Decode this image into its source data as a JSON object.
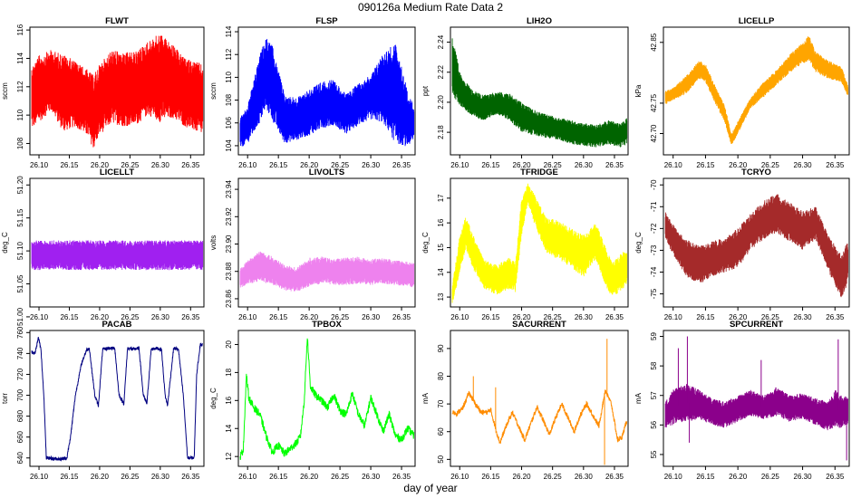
{
  "figure": {
    "title": "090126a   Medium Rate Data 2",
    "xlabel": "day of year"
  },
  "chart_data": [
    {
      "type": "line",
      "title": "FLWT",
      "ylabel": "sccm",
      "color": "#ff0000",
      "xlim": [
        26.085,
        26.372
      ],
      "ylim": [
        107.2,
        116.2
      ],
      "xticks": [
        "26.10",
        "26.15",
        "26.20",
        "26.25",
        "26.30",
        "26.35"
      ],
      "yticks": [
        "108",
        "110",
        "112",
        "114",
        "116"
      ],
      "x": [
        26.088,
        26.1,
        26.12,
        26.14,
        26.16,
        26.18,
        26.19,
        26.2,
        26.22,
        26.24,
        26.26,
        26.28,
        26.3,
        26.32,
        26.34,
        26.36,
        26.37
      ],
      "lo": [
        109.0,
        109.5,
        110.3,
        108.8,
        109.2,
        108.5,
        107.6,
        108.6,
        109.4,
        109.2,
        109.3,
        110.0,
        109.5,
        109.8,
        109.2,
        108.8,
        108.6
      ],
      "hi": [
        113.5,
        114.2,
        114.6,
        114.3,
        113.8,
        113.2,
        112.8,
        113.6,
        114.6,
        114.4,
        114.5,
        115.2,
        115.8,
        115.0,
        114.0,
        113.8,
        113.5
      ]
    },
    {
      "type": "line",
      "title": "FLSP",
      "ylabel": "sccm",
      "color": "#0000ff",
      "xlim": [
        26.085,
        26.372
      ],
      "ylim": [
        103.2,
        114.4
      ],
      "xticks": [
        "26.10",
        "26.15",
        "26.20",
        "26.25",
        "26.30",
        "26.35"
      ],
      "yticks": [
        "104",
        "106",
        "108",
        "110",
        "112",
        "114"
      ],
      "x": [
        26.088,
        26.1,
        26.12,
        26.13,
        26.14,
        26.16,
        26.18,
        26.2,
        26.22,
        26.24,
        26.26,
        26.28,
        26.3,
        26.32,
        26.34,
        26.36,
        26.37
      ],
      "lo": [
        103.8,
        104.2,
        106.0,
        107.2,
        106.2,
        104.2,
        104.5,
        104.9,
        105.5,
        105.8,
        105.0,
        105.8,
        106.3,
        106.0,
        104.2,
        103.9,
        104.5
      ],
      "hi": [
        106.5,
        107.5,
        112.0,
        113.5,
        112.8,
        108.5,
        108.2,
        109.0,
        109.6,
        109.8,
        108.5,
        109.5,
        110.2,
        112.2,
        113.0,
        108.8,
        107.5
      ]
    },
    {
      "type": "line",
      "title": "LIH2O",
      "ylabel": "ppt",
      "color": "#006400",
      "xlim": [
        26.085,
        26.372
      ],
      "ylim": [
        2.165,
        2.25
      ],
      "xticks": [
        "26.10",
        "26.15",
        "26.20",
        "26.25",
        "26.30",
        "26.35"
      ],
      "yticks": [
        "2.18",
        "2.20",
        "2.22",
        "2.24"
      ],
      "x": [
        26.088,
        26.1,
        26.12,
        26.14,
        26.16,
        26.18,
        26.2,
        26.22,
        26.24,
        26.26,
        26.28,
        26.3,
        26.32,
        26.34,
        26.36,
        26.37
      ],
      "lo": [
        2.205,
        2.198,
        2.19,
        2.188,
        2.192,
        2.188,
        2.18,
        2.178,
        2.176,
        2.175,
        2.172,
        2.171,
        2.17,
        2.172,
        2.17,
        2.172
      ],
      "hi": [
        2.245,
        2.22,
        2.208,
        2.205,
        2.207,
        2.206,
        2.2,
        2.195,
        2.192,
        2.19,
        2.188,
        2.186,
        2.185,
        2.188,
        2.186,
        2.19
      ]
    },
    {
      "type": "line",
      "title": "LICELLP",
      "ylabel": "kPa",
      "color": "#ffa500",
      "xlim": [
        26.085,
        26.372
      ],
      "ylim": [
        42.665,
        42.875
      ],
      "xticks": [
        "26.10",
        "26.15",
        "26.20",
        "26.25",
        "26.30",
        "26.35"
      ],
      "yticks": [
        "42.70",
        "42.75",
        "42.85"
      ],
      "x": [
        26.088,
        26.1,
        26.12,
        26.14,
        26.15,
        26.16,
        26.18,
        26.19,
        26.2,
        26.22,
        26.24,
        26.26,
        26.28,
        26.3,
        26.31,
        26.32,
        26.34,
        26.36,
        26.37
      ],
      "lo": [
        42.748,
        42.755,
        42.765,
        42.79,
        42.785,
        42.76,
        42.718,
        42.68,
        42.7,
        42.742,
        42.76,
        42.78,
        42.8,
        42.815,
        42.82,
        42.8,
        42.79,
        42.785,
        42.76
      ],
      "hi": [
        42.77,
        42.775,
        42.795,
        42.82,
        42.815,
        42.79,
        42.745,
        42.7,
        42.72,
        42.76,
        42.785,
        42.805,
        42.83,
        42.85,
        42.862,
        42.835,
        42.82,
        42.81,
        42.78
      ]
    },
    {
      "type": "line",
      "title": "LICELLT",
      "ylabel": "deg_C",
      "color": "#a020f0",
      "xlim": [
        26.085,
        26.372
      ],
      "ylim": [
        51.015,
        51.21
      ],
      "xticks": [
        "26.10",
        "26.15",
        "26.20",
        "26.25",
        "26.30",
        "26.35"
      ],
      "yticks": [
        "51.00",
        "51.05",
        "51.10",
        "51.15",
        "51.20"
      ],
      "x": [
        26.088,
        26.37
      ],
      "lo": [
        51.071,
        51.071
      ],
      "hi": [
        51.116,
        51.116
      ]
    },
    {
      "type": "line",
      "title": "LIVOLTS",
      "ylabel": "volts",
      "color": "#ee82ee",
      "xlim": [
        26.085,
        26.372
      ],
      "ylim": [
        23.854,
        23.948
      ],
      "xticks": [
        "26.10",
        "26.15",
        "26.20",
        "26.25",
        "26.30",
        "26.35"
      ],
      "yticks": [
        "23.86",
        "23.88",
        "23.90",
        "23.92",
        "23.94"
      ],
      "x": [
        26.088,
        26.1,
        26.12,
        26.14,
        26.16,
        26.18,
        26.2,
        26.22,
        26.24,
        26.26,
        26.28,
        26.3,
        26.32,
        26.34,
        26.36,
        26.37
      ],
      "lo": [
        23.868,
        23.87,
        23.873,
        23.87,
        23.866,
        23.865,
        23.869,
        23.871,
        23.87,
        23.87,
        23.871,
        23.87,
        23.871,
        23.87,
        23.869,
        23.868
      ],
      "hi": [
        23.882,
        23.888,
        23.895,
        23.891,
        23.885,
        23.883,
        23.89,
        23.891,
        23.889,
        23.89,
        23.891,
        23.889,
        23.89,
        23.888,
        23.887,
        23.886
      ]
    },
    {
      "type": "line",
      "title": "TFRIDGE",
      "ylabel": "deg_C",
      "color": "#ffff00",
      "xlim": [
        26.085,
        26.372
      ],
      "ylim": [
        12.6,
        17.8
      ],
      "xticks": [
        "26.10",
        "26.15",
        "26.20",
        "26.25",
        "26.30",
        "26.35"
      ],
      "yticks": [
        "13",
        "14",
        "15",
        "16",
        "17"
      ],
      "x": [
        26.088,
        26.1,
        26.11,
        26.12,
        26.14,
        26.16,
        26.18,
        26.19,
        26.2,
        26.21,
        26.22,
        26.24,
        26.26,
        26.28,
        26.3,
        26.32,
        26.34,
        26.35,
        26.37
      ],
      "lo": [
        12.7,
        14.0,
        15.0,
        14.2,
        13.3,
        13.1,
        13.3,
        13.2,
        15.5,
        16.8,
        16.0,
        14.8,
        14.5,
        14.2,
        13.8,
        14.5,
        13.2,
        13.0,
        13.5
      ],
      "hi": [
        13.5,
        15.5,
        16.3,
        15.6,
        14.5,
        14.3,
        14.6,
        14.4,
        17.0,
        17.6,
        17.2,
        16.2,
        16.1,
        15.8,
        15.5,
        16.0,
        14.8,
        14.5,
        15.0
      ]
    },
    {
      "type": "line",
      "title": "TCRYO",
      "ylabel": "deg_C",
      "color": "#a52a2a",
      "xlim": [
        26.085,
        26.372
      ],
      "ylim": [
        -75.6,
        -69.7
      ],
      "xticks": [
        "26.10",
        "26.15",
        "26.20",
        "26.25",
        "26.30",
        "26.35"
      ],
      "yticks": [
        "-75",
        "-74",
        "-73",
        "-72",
        "-71",
        "-70"
      ],
      "x": [
        26.088,
        26.1,
        26.12,
        26.14,
        26.16,
        26.18,
        26.2,
        26.22,
        26.24,
        26.26,
        26.28,
        26.3,
        26.32,
        26.34,
        26.36,
        26.37
      ],
      "lo": [
        -72.5,
        -73.2,
        -74.2,
        -74.6,
        -74.2,
        -74.0,
        -73.8,
        -73.0,
        -72.5,
        -72.2,
        -72.6,
        -73.0,
        -72.5,
        -74.0,
        -75.2,
        -74.5
      ],
      "hi": [
        -71.2,
        -71.8,
        -72.5,
        -72.8,
        -72.6,
        -72.4,
        -72.0,
        -71.3,
        -70.7,
        -70.4,
        -70.8,
        -71.2,
        -71.0,
        -72.3,
        -73.2,
        -72.5
      ]
    },
    {
      "type": "line",
      "title": "PACAB",
      "ylabel": "torr",
      "color": "#000080",
      "xlim": [
        26.085,
        26.372
      ],
      "ylim": [
        632,
        762
      ],
      "xticks": [
        "26.10",
        "26.15",
        "26.20",
        "26.25",
        "26.30",
        "26.35"
      ],
      "yticks": [
        "640",
        "660",
        "680",
        "700",
        "720",
        "740",
        "760"
      ],
      "x": [
        26.088,
        26.093,
        26.095,
        26.099,
        26.103,
        26.108,
        26.112,
        26.135,
        26.146,
        26.152,
        26.16,
        26.17,
        26.178,
        26.183,
        26.192,
        26.198,
        26.205,
        26.215,
        26.225,
        26.232,
        26.24,
        26.246,
        26.255,
        26.265,
        26.272,
        26.278,
        26.285,
        26.293,
        26.302,
        26.308,
        26.312,
        26.322,
        26.33,
        26.338,
        26.345,
        26.356,
        26.36,
        26.366,
        26.37
      ],
      "y": [
        742,
        740,
        744,
        755,
        745,
        700,
        640,
        639,
        640,
        660,
        700,
        730,
        743,
        745,
        700,
        690,
        744,
        745,
        745,
        700,
        692,
        745,
        744,
        745,
        700,
        692,
        744,
        745,
        744,
        700,
        690,
        745,
        744,
        700,
        640,
        640,
        720,
        749,
        748
      ]
    },
    {
      "type": "line",
      "title": "TPBOX",
      "ylabel": "deg_C",
      "color": "#00ff00",
      "xlim": [
        26.085,
        26.372
      ],
      "ylim": [
        11.3,
        21.0
      ],
      "xticks": [
        "26.10",
        "26.15",
        "26.20",
        "26.25",
        "26.30",
        "26.35"
      ],
      "yticks": [
        "12",
        "14",
        "16",
        "18",
        "20"
      ],
      "x": [
        26.088,
        26.093,
        26.098,
        26.102,
        26.11,
        26.12,
        26.13,
        26.14,
        26.15,
        26.16,
        26.17,
        26.18,
        26.186,
        26.192,
        26.197,
        26.202,
        26.21,
        26.22,
        26.23,
        26.24,
        26.25,
        26.26,
        26.27,
        26.28,
        26.29,
        26.3,
        26.31,
        26.32,
        26.33,
        26.34,
        26.35,
        26.36,
        26.37
      ],
      "y": [
        12.0,
        12.5,
        17.8,
        16.2,
        15.5,
        15.0,
        13.5,
        12.3,
        12.8,
        12.2,
        12.6,
        13.0,
        13.5,
        16.0,
        20.6,
        17.0,
        16.4,
        16.0,
        15.5,
        16.4,
        15.3,
        15.0,
        16.5,
        15.0,
        14.2,
        16.2,
        15.0,
        13.8,
        15.0,
        13.5,
        13.2,
        14.0,
        13.5
      ]
    },
    {
      "type": "line",
      "title": "SACURRENT",
      "ylabel": "mA",
      "color": "#ff8c00",
      "xlim": [
        26.085,
        26.372
      ],
      "ylim": [
        47.5,
        96.5
      ],
      "xticks": [
        "26.10",
        "26.15",
        "26.20",
        "26.25",
        "26.30",
        "26.35"
      ],
      "yticks": [
        "50",
        "60",
        "70",
        "80",
        "90"
      ],
      "x": [
        26.088,
        26.095,
        26.105,
        26.115,
        26.125,
        26.135,
        26.145,
        26.15,
        26.158,
        26.165,
        26.175,
        26.185,
        26.195,
        26.205,
        26.215,
        26.225,
        26.235,
        26.245,
        26.255,
        26.265,
        26.275,
        26.285,
        26.295,
        26.305,
        26.315,
        26.325,
        26.335,
        26.345,
        26.355,
        26.362,
        26.37
      ],
      "y": [
        67.0,
        66.5,
        68.5,
        74.0,
        70.0,
        67.0,
        67.0,
        68.0,
        61.0,
        56.0,
        62.0,
        67.0,
        62.0,
        57.0,
        63.0,
        69.0,
        64.0,
        59.0,
        65.0,
        70.0,
        65.0,
        60.0,
        66.0,
        70.0,
        66.0,
        62.0,
        75.0,
        70.0,
        57.0,
        58.0,
        64.0
      ],
      "spikes": [
        {
          "x": 26.122,
          "y": 80.0
        },
        {
          "x": 26.158,
          "y": 76.0
        },
        {
          "x": 26.338,
          "y": 93.5
        },
        {
          "x": 26.334,
          "y": 48.0
        }
      ]
    },
    {
      "type": "line",
      "title": "SPCURRENT",
      "ylabel": "mA",
      "color": "#8b008b",
      "xlim": [
        26.085,
        26.372
      ],
      "ylim": [
        54.6,
        59.2
      ],
      "xticks": [
        "26.10",
        "26.15",
        "26.20",
        "26.25",
        "26.30",
        "26.35"
      ],
      "yticks": [
        "55",
        "56",
        "57",
        "58",
        "59"
      ],
      "x": [
        26.088,
        26.1,
        26.12,
        26.14,
        26.16,
        26.18,
        26.2,
        26.22,
        26.24,
        26.26,
        26.28,
        26.3,
        26.32,
        26.34,
        26.35,
        26.36,
        26.37
      ],
      "lo": [
        55.9,
        56.0,
        56.1,
        56.2,
        56.0,
        55.9,
        56.1,
        56.3,
        56.2,
        56.3,
        56.1,
        56.2,
        56.0,
        55.8,
        55.9,
        55.9,
        56.0
      ],
      "hi": [
        56.8,
        57.2,
        57.4,
        57.2,
        56.9,
        56.8,
        57.0,
        57.2,
        57.0,
        57.3,
        57.0,
        57.1,
        56.9,
        56.8,
        57.2,
        57.0,
        57.0
      ],
      "spikes": [
        {
          "x": 26.108,
          "y": 58.6
        },
        {
          "x": 26.122,
          "y": 59.0
        },
        {
          "x": 26.125,
          "y": 55.4
        },
        {
          "x": 26.236,
          "y": 58.2
        },
        {
          "x": 26.355,
          "y": 58.9
        },
        {
          "x": 26.368,
          "y": 54.8
        }
      ]
    }
  ]
}
